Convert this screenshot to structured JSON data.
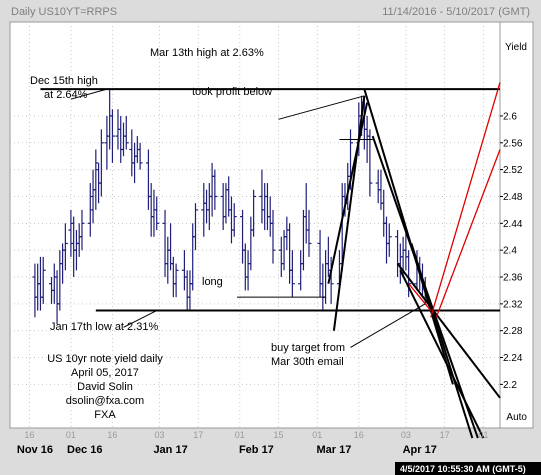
{
  "header": {
    "symbol_label": "Daily US10YT=RRPS",
    "date_range": "11/14/2016 - 5/10/2017 (GMT)"
  },
  "footer": {
    "timestamp": "4/5/2017 10:55:30 AM (GMT-5)"
  },
  "colors": {
    "background": "#dcdcdc",
    "plot_bg": "#ffffff",
    "grid": "#c8c8c8",
    "bars": "#1f1f7a",
    "trendlines": "#000000",
    "target_lines": "#e00000",
    "footer_bg": "#000000",
    "footer_text": "#ffffff"
  },
  "chart_data": {
    "type": "ohlc-bar",
    "title": "Daily US10YT=RRPS",
    "ylabel": "Yield",
    "y_axis_side": "right",
    "ylim": [
      2.135,
      2.74
    ],
    "y_ticks": [
      2.2,
      2.24,
      2.28,
      2.32,
      2.36,
      2.4,
      2.44,
      2.48,
      2.52,
      2.56,
      2.6
    ],
    "y_axis_extra_label": "Auto",
    "x_months": [
      {
        "label": "Nov 16",
        "day": 78
      },
      {
        "label": "Dec 16",
        "day": 96
      },
      {
        "label": "Jan 17",
        "day": 127
      },
      {
        "label": "Feb 17",
        "day": 158
      },
      {
        "label": "Mar 17",
        "day": 186
      },
      {
        "label": "Apr 17",
        "day": 217
      }
    ],
    "x_day_ticks": [
      {
        "label": "16",
        "day": 76
      },
      {
        "label": "01",
        "day": 91
      },
      {
        "label": "16",
        "day": 106
      },
      {
        "label": "03",
        "day": 123
      },
      {
        "label": "17",
        "day": 137
      },
      {
        "label": "01",
        "day": 152
      },
      {
        "label": "15",
        "day": 166
      },
      {
        "label": "01",
        "day": 180
      },
      {
        "label": "16",
        "day": 195
      },
      {
        "label": "03",
        "day": 212
      },
      {
        "label": "17",
        "day": 226
      },
      {
        "label": "01",
        "day": 240
      }
    ],
    "xlim": [
      69,
      246
    ],
    "bars": [
      {
        "day": 78,
        "o": 2.36,
        "h": 2.38,
        "l": 2.3,
        "c": 2.33
      },
      {
        "day": 79,
        "o": 2.33,
        "h": 2.38,
        "l": 2.31,
        "c": 2.35
      },
      {
        "day": 80,
        "o": 2.35,
        "h": 2.39,
        "l": 2.31,
        "c": 2.33
      },
      {
        "day": 81,
        "o": 2.33,
        "h": 2.39,
        "l": 2.32,
        "c": 2.37
      },
      {
        "day": 84,
        "o": 2.35,
        "h": 2.36,
        "l": 2.32,
        "c": 2.34
      },
      {
        "day": 85,
        "o": 2.34,
        "h": 2.38,
        "l": 2.32,
        "c": 2.36
      },
      {
        "day": 86,
        "o": 2.36,
        "h": 2.37,
        "l": 2.29,
        "c": 2.32
      },
      {
        "day": 87,
        "o": 2.32,
        "h": 2.4,
        "l": 2.31,
        "c": 2.38
      },
      {
        "day": 88,
        "o": 2.38,
        "h": 2.41,
        "l": 2.35,
        "c": 2.4
      },
      {
        "day": 89,
        "o": 2.4,
        "h": 2.44,
        "l": 2.37,
        "c": 2.41
      },
      {
        "day": 91,
        "o": 2.43,
        "h": 2.46,
        "l": 2.39,
        "c": 2.44
      },
      {
        "day": 92,
        "o": 2.41,
        "h": 2.45,
        "l": 2.36,
        "c": 2.4
      },
      {
        "day": 93,
        "o": 2.4,
        "h": 2.43,
        "l": 2.37,
        "c": 2.41
      },
      {
        "day": 94,
        "o": 2.41,
        "h": 2.44,
        "l": 2.39,
        "c": 2.42
      },
      {
        "day": 95,
        "o": 2.42,
        "h": 2.46,
        "l": 2.4,
        "c": 2.44
      },
      {
        "day": 98,
        "o": 2.44,
        "h": 2.5,
        "l": 2.42,
        "c": 2.48
      },
      {
        "day": 99,
        "o": 2.46,
        "h": 2.52,
        "l": 2.44,
        "c": 2.49
      },
      {
        "day": 100,
        "o": 2.49,
        "h": 2.55,
        "l": 2.46,
        "c": 2.53
      },
      {
        "day": 101,
        "o": 2.52,
        "h": 2.53,
        "l": 2.47,
        "c": 2.5
      },
      {
        "day": 102,
        "o": 2.5,
        "h": 2.58,
        "l": 2.48,
        "c": 2.56
      },
      {
        "day": 104,
        "o": 2.56,
        "h": 2.6,
        "l": 2.52,
        "c": 2.57
      },
      {
        "day": 105,
        "o": 2.57,
        "h": 2.64,
        "l": 2.55,
        "c": 2.6
      },
      {
        "day": 106,
        "o": 2.6,
        "h": 2.61,
        "l": 2.53,
        "c": 2.57
      },
      {
        "day": 108,
        "o": 2.57,
        "h": 2.61,
        "l": 2.55,
        "c": 2.58
      },
      {
        "day": 109,
        "o": 2.58,
        "h": 2.6,
        "l": 2.53,
        "c": 2.55
      },
      {
        "day": 110,
        "o": 2.55,
        "h": 2.59,
        "l": 2.54,
        "c": 2.57
      },
      {
        "day": 111,
        "o": 2.57,
        "h": 2.6,
        "l": 2.55,
        "c": 2.56
      },
      {
        "day": 113,
        "o": 2.55,
        "h": 2.58,
        "l": 2.51,
        "c": 2.53
      },
      {
        "day": 114,
        "o": 2.53,
        "h": 2.56,
        "l": 2.5,
        "c": 2.54
      },
      {
        "day": 115,
        "o": 2.54,
        "h": 2.57,
        "l": 2.53,
        "c": 2.55
      },
      {
        "day": 116,
        "o": 2.55,
        "h": 2.56,
        "l": 2.52,
        "c": 2.53
      },
      {
        "day": 119,
        "o": 2.53,
        "h": 2.55,
        "l": 2.46,
        "c": 2.48
      },
      {
        "day": 120,
        "o": 2.48,
        "h": 2.5,
        "l": 2.42,
        "c": 2.45
      },
      {
        "day": 121,
        "o": 2.45,
        "h": 2.49,
        "l": 2.42,
        "c": 2.46
      },
      {
        "day": 122,
        "o": 2.46,
        "h": 2.48,
        "l": 2.43,
        "c": 2.44
      },
      {
        "day": 125,
        "o": 2.44,
        "h": 2.46,
        "l": 2.36,
        "c": 2.38
      },
      {
        "day": 126,
        "o": 2.38,
        "h": 2.42,
        "l": 2.35,
        "c": 2.4
      },
      {
        "day": 127,
        "o": 2.4,
        "h": 2.44,
        "l": 2.37,
        "c": 2.38
      },
      {
        "day": 128,
        "o": 2.38,
        "h": 2.39,
        "l": 2.33,
        "c": 2.35
      },
      {
        "day": 129,
        "o": 2.35,
        "h": 2.38,
        "l": 2.33,
        "c": 2.37
      },
      {
        "day": 132,
        "o": 2.37,
        "h": 2.4,
        "l": 2.34,
        "c": 2.36
      },
      {
        "day": 133,
        "o": 2.36,
        "h": 2.37,
        "l": 2.31,
        "c": 2.33
      },
      {
        "day": 134,
        "o": 2.33,
        "h": 2.37,
        "l": 2.31,
        "c": 2.35
      },
      {
        "day": 135,
        "o": 2.35,
        "h": 2.44,
        "l": 2.34,
        "c": 2.42
      },
      {
        "day": 136,
        "o": 2.42,
        "h": 2.47,
        "l": 2.4,
        "c": 2.46
      },
      {
        "day": 139,
        "o": 2.46,
        "h": 2.5,
        "l": 2.42,
        "c": 2.47
      },
      {
        "day": 140,
        "o": 2.47,
        "h": 2.49,
        "l": 2.44,
        "c": 2.46
      },
      {
        "day": 141,
        "o": 2.46,
        "h": 2.5,
        "l": 2.43,
        "c": 2.48
      },
      {
        "day": 142,
        "o": 2.48,
        "h": 2.53,
        "l": 2.45,
        "c": 2.51
      },
      {
        "day": 143,
        "o": 2.51,
        "h": 2.52,
        "l": 2.46,
        "c": 2.48
      },
      {
        "day": 146,
        "o": 2.48,
        "h": 2.5,
        "l": 2.43,
        "c": 2.45
      },
      {
        "day": 147,
        "o": 2.45,
        "h": 2.5,
        "l": 2.44,
        "c": 2.49
      },
      {
        "day": 148,
        "o": 2.49,
        "h": 2.51,
        "l": 2.45,
        "c": 2.46
      },
      {
        "day": 149,
        "o": 2.46,
        "h": 2.48,
        "l": 2.41,
        "c": 2.43
      },
      {
        "day": 150,
        "o": 2.43,
        "h": 2.47,
        "l": 2.42,
        "c": 2.45
      },
      {
        "day": 153,
        "o": 2.45,
        "h": 2.46,
        "l": 2.38,
        "c": 2.4
      },
      {
        "day": 154,
        "o": 2.4,
        "h": 2.41,
        "l": 2.34,
        "c": 2.36
      },
      {
        "day": 155,
        "o": 2.36,
        "h": 2.4,
        "l": 2.34,
        "c": 2.38
      },
      {
        "day": 156,
        "o": 2.38,
        "h": 2.45,
        "l": 2.37,
        "c": 2.43
      },
      {
        "day": 157,
        "o": 2.43,
        "h": 2.49,
        "l": 2.42,
        "c": 2.48
      },
      {
        "day": 160,
        "o": 2.48,
        "h": 2.52,
        "l": 2.44,
        "c": 2.46
      },
      {
        "day": 161,
        "o": 2.46,
        "h": 2.5,
        "l": 2.43,
        "c": 2.48
      },
      {
        "day": 162,
        "o": 2.48,
        "h": 2.5,
        "l": 2.43,
        "c": 2.45
      },
      {
        "day": 163,
        "o": 2.45,
        "h": 2.48,
        "l": 2.42,
        "c": 2.44
      },
      {
        "day": 164,
        "o": 2.44,
        "h": 2.46,
        "l": 2.38,
        "c": 2.4
      },
      {
        "day": 167,
        "o": 2.4,
        "h": 2.42,
        "l": 2.36,
        "c": 2.38
      },
      {
        "day": 168,
        "o": 2.38,
        "h": 2.43,
        "l": 2.37,
        "c": 2.42
      },
      {
        "day": 169,
        "o": 2.42,
        "h": 2.45,
        "l": 2.4,
        "c": 2.43
      },
      {
        "day": 170,
        "o": 2.43,
        "h": 2.44,
        "l": 2.35,
        "c": 2.37
      },
      {
        "day": 171,
        "o": 2.37,
        "h": 2.4,
        "l": 2.33,
        "c": 2.35
      },
      {
        "day": 174,
        "o": 2.35,
        "h": 2.4,
        "l": 2.34,
        "c": 2.38
      },
      {
        "day": 175,
        "o": 2.38,
        "h": 2.46,
        "l": 2.37,
        "c": 2.45
      },
      {
        "day": 176,
        "o": 2.45,
        "h": 2.5,
        "l": 2.41,
        "c": 2.43
      },
      {
        "day": 177,
        "o": 2.43,
        "h": 2.46,
        "l": 2.39,
        "c": 2.41
      },
      {
        "day": 181,
        "o": 2.41,
        "h": 2.43,
        "l": 2.33,
        "c": 2.35
      },
      {
        "day": 182,
        "o": 2.35,
        "h": 2.38,
        "l": 2.31,
        "c": 2.33
      },
      {
        "day": 183,
        "o": 2.33,
        "h": 2.4,
        "l": 2.32,
        "c": 2.38
      },
      {
        "day": 184,
        "o": 2.38,
        "h": 2.42,
        "l": 2.36,
        "c": 2.37
      },
      {
        "day": 185,
        "o": 2.37,
        "h": 2.39,
        "l": 2.32,
        "c": 2.35
      },
      {
        "day": 188,
        "o": 2.35,
        "h": 2.4,
        "l": 2.34,
        "c": 2.38
      },
      {
        "day": 189,
        "o": 2.38,
        "h": 2.5,
        "l": 2.37,
        "c": 2.48
      },
      {
        "day": 190,
        "o": 2.48,
        "h": 2.5,
        "l": 2.45,
        "c": 2.47
      },
      {
        "day": 191,
        "o": 2.47,
        "h": 2.53,
        "l": 2.46,
        "c": 2.51
      },
      {
        "day": 192,
        "o": 2.51,
        "h": 2.58,
        "l": 2.49,
        "c": 2.56
      },
      {
        "day": 195,
        "o": 2.56,
        "h": 2.62,
        "l": 2.54,
        "c": 2.6
      },
      {
        "day": 196,
        "o": 2.6,
        "h": 2.63,
        "l": 2.57,
        "c": 2.62
      },
      {
        "day": 197,
        "o": 2.62,
        "h": 2.63,
        "l": 2.55,
        "c": 2.58
      },
      {
        "day": 198,
        "o": 2.58,
        "h": 2.6,
        "l": 2.53,
        "c": 2.57
      },
      {
        "day": 199,
        "o": 2.57,
        "h": 2.58,
        "l": 2.48,
        "c": 2.5
      },
      {
        "day": 202,
        "o": 2.5,
        "h": 2.52,
        "l": 2.47,
        "c": 2.49
      },
      {
        "day": 203,
        "o": 2.49,
        "h": 2.52,
        "l": 2.46,
        "c": 2.47
      },
      {
        "day": 204,
        "o": 2.47,
        "h": 2.49,
        "l": 2.42,
        "c": 2.44
      },
      {
        "day": 205,
        "o": 2.44,
        "h": 2.45,
        "l": 2.38,
        "c": 2.41
      },
      {
        "day": 206,
        "o": 2.41,
        "h": 2.44,
        "l": 2.39,
        "c": 2.42
      },
      {
        "day": 209,
        "o": 2.42,
        "h": 2.43,
        "l": 2.36,
        "c": 2.38
      },
      {
        "day": 210,
        "o": 2.38,
        "h": 2.41,
        "l": 2.35,
        "c": 2.39
      },
      {
        "day": 211,
        "o": 2.39,
        "h": 2.42,
        "l": 2.36,
        "c": 2.4
      },
      {
        "day": 212,
        "o": 2.4,
        "h": 2.43,
        "l": 2.37,
        "c": 2.39
      },
      {
        "day": 213,
        "o": 2.39,
        "h": 2.4,
        "l": 2.33,
        "c": 2.35
      },
      {
        "day": 216,
        "o": 2.35,
        "h": 2.4,
        "l": 2.34,
        "c": 2.38
      },
      {
        "day": 217,
        "o": 2.38,
        "h": 2.39,
        "l": 2.34,
        "c": 2.36
      },
      {
        "day": 218,
        "o": 2.36,
        "h": 2.38,
        "l": 2.33,
        "c": 2.35
      },
      {
        "day": 219,
        "o": 2.35,
        "h": 2.36,
        "l": 2.32,
        "c": 2.33
      }
    ],
    "horizontal_lines": [
      {
        "name": "resistance",
        "y": 2.64,
        "x_from": 80,
        "x_to": 246
      },
      {
        "name": "support",
        "y": 2.31,
        "x_from": 100,
        "x_to": 246
      }
    ],
    "trend_lines": [
      {
        "name": "channel-upper-fast",
        "points": [
          [
            186,
            2.28
          ],
          [
            197,
            2.63
          ]
        ]
      },
      {
        "name": "channel-lower-fast",
        "points": [
          [
            184,
            2.35
          ],
          [
            198,
            2.62
          ]
        ]
      },
      {
        "name": "wedge-line-1",
        "points": [
          [
            197,
            2.64
          ],
          [
            229,
            2.2
          ]
        ]
      },
      {
        "name": "wedge-line-2",
        "points": [
          [
            200,
            2.57
          ],
          [
            238,
            2.12
          ]
        ]
      },
      {
        "name": "wedge-line-3",
        "points": [
          [
            209,
            2.38
          ],
          [
            246,
            2.18
          ]
        ]
      },
      {
        "name": "wedge-line-4",
        "points": [
          [
            210,
            2.37
          ],
          [
            240,
            2.12
          ]
        ]
      },
      {
        "name": "wedge-line-5",
        "points": [
          [
            214,
            2.41
          ],
          [
            236,
            2.12
          ]
        ]
      }
    ],
    "target_lines": [
      {
        "name": "target-upper",
        "points": [
          [
            221,
            2.3
          ],
          [
            246,
            2.65
          ]
        ]
      },
      {
        "name": "target-lower",
        "points": [
          [
            223,
            2.3
          ],
          [
            246,
            2.55
          ]
        ]
      },
      {
        "name": "target-inner",
        "points": [
          [
            213,
            2.35
          ],
          [
            221,
            2.31
          ]
        ]
      }
    ],
    "annotations": [
      {
        "id": "mar13",
        "text": "Mar 13th high at 2.63%",
        "pointer": [
          [
            166,
            2.595
          ],
          [
            197,
            2.63
          ]
        ]
      },
      {
        "id": "dec15",
        "text_lines": [
          "Dec 15th high",
          "at 2.64%"
        ],
        "pointer": [
          [
            91,
            2.625
          ],
          [
            104,
            2.64
          ]
        ]
      },
      {
        "id": "tookprofit",
        "text": "took profit below",
        "pointer": [
          [
            188,
            2.565
          ],
          [
            200,
            2.565
          ]
        ]
      },
      {
        "id": "long",
        "text": "long",
        "pointer": [
          [
            151,
            2.33
          ],
          [
            183,
            2.33
          ]
        ]
      },
      {
        "id": "jan17",
        "text": "Jan 17th low at 2.31%",
        "pointer": [
          [
            110,
            2.285
          ],
          [
            122,
            2.31
          ]
        ]
      },
      {
        "id": "buytarget",
        "text_lines": [
          "buy target from",
          "Mar 30th email"
        ],
        "pointer": [
          [
            192,
            2.255
          ],
          [
            219,
            2.32
          ]
        ]
      }
    ],
    "footnote_lines": [
      "US 10yr note yield daily",
      "April 05, 2017",
      "David Solin",
      "dsolin@fxa.com",
      "FXA"
    ]
  }
}
